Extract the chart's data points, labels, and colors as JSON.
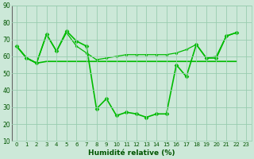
{
  "title": "",
  "xlabel": "Humidité relative (%)",
  "ylabel": "",
  "bg_color": "#cce8d8",
  "grid_color": "#99ccb0",
  "line_color": "#00bb00",
  "xlim": [
    -0.5,
    23.5
  ],
  "ylim": [
    10,
    90
  ],
  "xticks": [
    0,
    1,
    2,
    3,
    4,
    5,
    6,
    7,
    8,
    9,
    10,
    11,
    12,
    13,
    14,
    15,
    16,
    17,
    18,
    19,
    20,
    21,
    22,
    23
  ],
  "yticks": [
    10,
    20,
    30,
    40,
    50,
    60,
    70,
    80,
    90
  ],
  "series": [
    {
      "x": [
        0,
        1,
        2,
        3,
        4,
        5,
        6,
        7,
        8,
        9,
        10,
        11,
        12,
        13,
        14,
        15,
        16,
        17,
        18,
        19,
        20,
        21,
        22
      ],
      "y": [
        66,
        59,
        56,
        73,
        63,
        75,
        69,
        66,
        29,
        35,
        25,
        27,
        26,
        24,
        26,
        26,
        55,
        48,
        67,
        59,
        59,
        72,
        74
      ],
      "marker": "D",
      "markersize": 2.5,
      "linewidth": 1.2,
      "linestyle": "solid"
    },
    {
      "x": [
        0,
        1,
        2,
        3,
        4,
        5,
        6,
        7,
        8,
        9,
        10,
        11,
        12,
        13,
        14,
        15,
        16,
        17,
        18,
        19,
        20,
        21,
        22
      ],
      "y": [
        66,
        59,
        56,
        57,
        57,
        57,
        57,
        57,
        57,
        57,
        57,
        57,
        57,
        57,
        57,
        57,
        57,
        57,
        57,
        57,
        57,
        57,
        57
      ],
      "marker": null,
      "markersize": 0,
      "linewidth": 1.2,
      "linestyle": "solid"
    },
    {
      "x": [
        0,
        1,
        2,
        3,
        4,
        5,
        6,
        7,
        8,
        9,
        10,
        11,
        12,
        13,
        14,
        15,
        16,
        17,
        18,
        19,
        20,
        21,
        22
      ],
      "y": [
        66,
        59,
        56,
        73,
        63,
        74,
        66,
        62,
        58,
        59,
        60,
        61,
        61,
        61,
        61,
        61,
        62,
        64,
        67,
        59,
        60,
        72,
        74
      ],
      "marker": "D",
      "markersize": 1.5,
      "linewidth": 0.9,
      "linestyle": "solid"
    }
  ]
}
